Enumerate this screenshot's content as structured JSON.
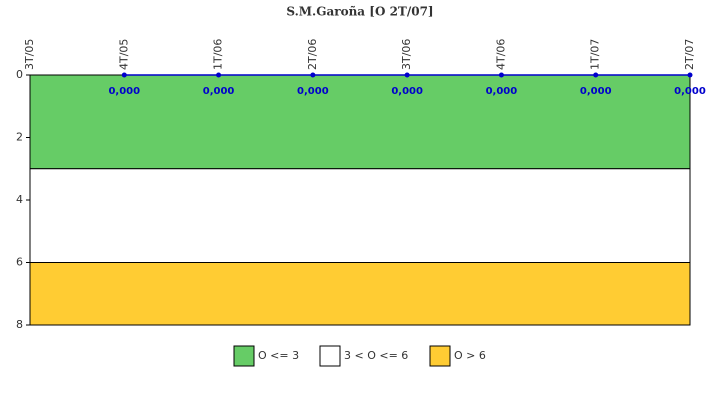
{
  "chart_data": {
    "type": "line",
    "title": "S.M.Garoña [O 2T/07]",
    "categories": [
      "3T/05",
      "4T/05",
      "1T/06",
      "2T/06",
      "3T/06",
      "4T/06",
      "1T/07",
      "2T/07"
    ],
    "series": [
      {
        "color": "#0000cc",
        "values": [
          null,
          0,
          0,
          0,
          0,
          0,
          0,
          0
        ],
        "value_labels": [
          null,
          "0,000",
          "0,000",
          "0,000",
          "0,000",
          "0,000",
          "0,000",
          "0,000"
        ]
      }
    ],
    "ylim": [
      0,
      8
    ],
    "y_inverted": true,
    "yticks": [
      0,
      2,
      4,
      6,
      8
    ],
    "bands": [
      {
        "name": "O <= 3",
        "from": 0,
        "to": 3,
        "color": "#66cc66"
      },
      {
        "name": "3 < O <= 6",
        "from": 3,
        "to": 6,
        "color": "#ffffff"
      },
      {
        "name": "O > 6",
        "from": 6,
        "to": 8,
        "color": "#ffcc33"
      }
    ]
  }
}
